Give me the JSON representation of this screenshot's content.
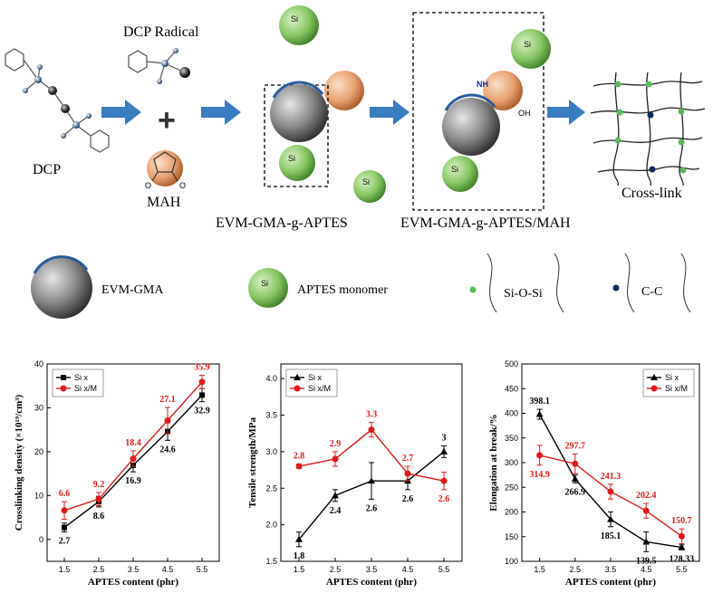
{
  "scheme": {
    "dcp_label": "DCP",
    "dcp_radical_label": "DCP Radical",
    "mah_label": "MAH",
    "plus_symbol": "+",
    "product1_label": "EVM-GMA-g-APTES",
    "product2_label": "EVM-GMA-g-APTES/MAH",
    "crosslink_label": "Cross-link",
    "atom_si": "Si",
    "atom_o": "O",
    "atom_nh": "NH",
    "atom_oh": "OH"
  },
  "legend": {
    "evm_gma": "EVM-GMA",
    "aptes": "APTES monomer",
    "si_o_si": "Si-O-Si",
    "c_c": "C-C"
  },
  "colors": {
    "arrow": "#3a7cc0",
    "green_sphere": "#7fbf5a",
    "orange_sphere": "#e8a070",
    "gray_sphere": "#8a8a8a",
    "series1": "#000000",
    "series2": "#e01a1a",
    "node_green": "#59b85a",
    "node_navy": "#0d2a5a"
  },
  "chart_data": [
    {
      "type": "line",
      "x": [
        1.5,
        2.5,
        3.5,
        4.5,
        5.5
      ],
      "xlabel": "APTES content (phr)",
      "ylabel": "Crosslinking density (×10¹⁹/cm³)",
      "xlim": [
        1,
        6
      ],
      "ylim": [
        -5,
        40
      ],
      "xticks": [
        "1.5",
        "2.5",
        "3.5",
        "4.5",
        "5.5"
      ],
      "yticks": [
        "0",
        "10",
        "20",
        "30",
        "40"
      ],
      "legend_position": "top-left",
      "series": [
        {
          "name": "Si x",
          "values": [
            2.7,
            8.6,
            16.9,
            24.6,
            32.9
          ],
          "labels": [
            "2.7",
            "8.6",
            "16.9",
            "24.6",
            "32.9"
          ],
          "errors": [
            1.0,
            1.2,
            1.5,
            2.0,
            1.5
          ],
          "marker": "square"
        },
        {
          "name": "Si x/M",
          "values": [
            6.6,
            9.2,
            18.4,
            27.1,
            35.9
          ],
          "labels": [
            "6.6",
            "9.2",
            "18.4",
            "27.1",
            "35.9"
          ],
          "errors": [
            2.0,
            1.5,
            1.8,
            3.0,
            1.5
          ],
          "marker": "circle"
        }
      ]
    },
    {
      "type": "line",
      "x": [
        1.5,
        2.5,
        3.5,
        4.5,
        5.5
      ],
      "xlabel": "APTES content (phr)",
      "ylabel": "Tensile strength/MPa",
      "xlim": [
        1,
        6
      ],
      "ylim": [
        1.5,
        4.2
      ],
      "xticks": [
        "1.5",
        "2.5",
        "3.5",
        "4.5",
        "5.5"
      ],
      "yticks": [
        "1.5",
        "2.0",
        "2.5",
        "3.0",
        "3.5",
        "4.0"
      ],
      "legend_position": "top-left",
      "series": [
        {
          "name": "Si x",
          "values": [
            1.8,
            2.4,
            2.6,
            2.6,
            3.0
          ],
          "labels": [
            "1.8",
            "2.4",
            "2.6",
            "2.6",
            "3"
          ],
          "errors": [
            0.1,
            0.08,
            0.25,
            0.12,
            0.08
          ],
          "marker": "triangle"
        },
        {
          "name": "Si x/M",
          "values": [
            2.8,
            2.9,
            3.3,
            2.7,
            2.6
          ],
          "labels": [
            "2.8",
            "2.9",
            "3.3",
            "2.7",
            "2.6"
          ],
          "errors": [
            0.03,
            0.1,
            0.1,
            0.1,
            0.12
          ],
          "marker": "circle"
        }
      ]
    },
    {
      "type": "line",
      "x": [
        1.5,
        2.5,
        3.5,
        4.5,
        5.5
      ],
      "xlabel": "APTES content (phr)",
      "ylabel": "Elongation at break/%",
      "xlim": [
        1,
        6
      ],
      "ylim": [
        100,
        500
      ],
      "xticks": [
        "1.5",
        "2.5",
        "3.5",
        "4.5",
        "5.5"
      ],
      "yticks": [
        "100",
        "150",
        "200",
        "250",
        "300",
        "350",
        "400",
        "450",
        "500"
      ],
      "legend_position": "top-right",
      "series": [
        {
          "name": "Si x",
          "values": [
            398.1,
            266.9,
            185.1,
            139.5,
            128.33
          ],
          "labels": [
            "398.1",
            "266.9",
            "185.1",
            "139.5",
            "128.33"
          ],
          "errors": [
            10,
            8,
            15,
            20,
            5
          ],
          "marker": "triangle"
        },
        {
          "name": "Si x/M",
          "values": [
            314.9,
            297.7,
            241.3,
            202.4,
            150.7
          ],
          "labels": [
            "314.9",
            "297.7",
            "241.3",
            "202.4",
            "150.7"
          ],
          "errors": [
            20,
            20,
            15,
            15,
            15
          ],
          "marker": "circle"
        }
      ]
    }
  ]
}
